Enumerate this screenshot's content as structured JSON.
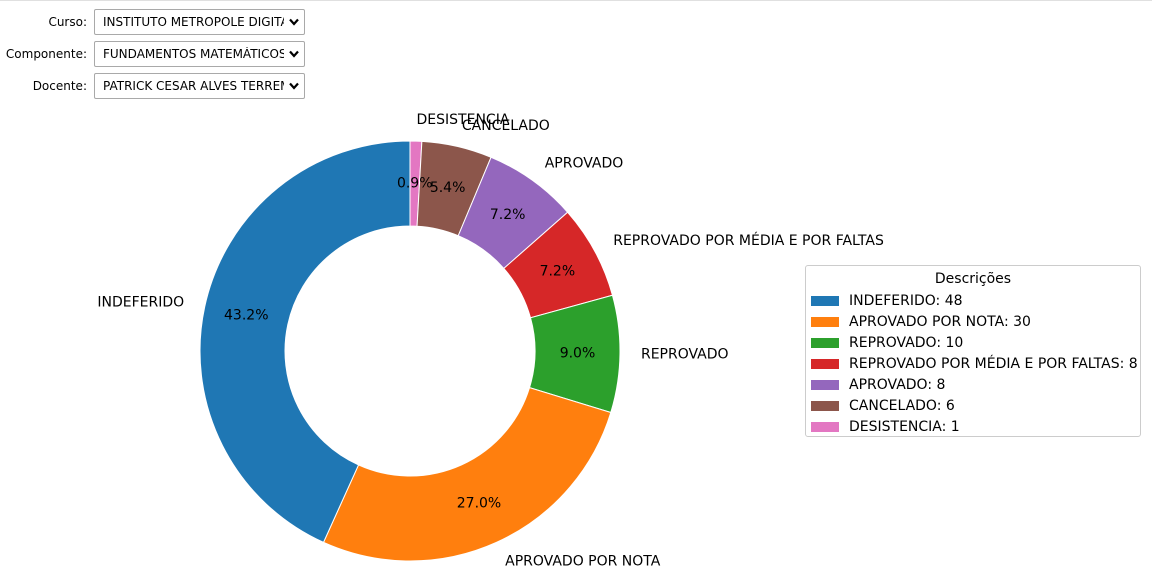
{
  "filters": [
    {
      "label": "Curso:",
      "value": "INSTITUTO METROPOLE DIGITAL"
    },
    {
      "label": "Componente:",
      "value": "FUNDAMENTOS MATEMÁTICOS DA COMPUTAÇÃO"
    },
    {
      "label": "Docente:",
      "value": "PATRICK CESAR ALVES TERREMATTE"
    }
  ],
  "icons": {
    "dropdown": "chevron-down-icon"
  },
  "chart_data": {
    "type": "pie",
    "donut": true,
    "start_angle_deg": 90,
    "direction": "clockwise-from-top",
    "categories": [
      "DESISTENCIA",
      "CANCELADO",
      "APROVADO",
      "REPROVADO POR MÉDIA E POR FALTAS",
      "REPROVADO",
      "APROVADO POR NOTA",
      "INDEFERIDO"
    ],
    "values": [
      1,
      6,
      8,
      8,
      10,
      30,
      48
    ],
    "percent_labels": [
      "0.9%",
      "5.4%",
      "7.2%",
      "7.2%",
      "9.0%",
      "27.0%",
      "43.2%"
    ],
    "colors": [
      "#e377c2",
      "#8c564b",
      "#9467bd",
      "#d62728",
      "#2ca02c",
      "#ff7f0e",
      "#1f77b4"
    ],
    "legend": {
      "title": "Descrições",
      "placement": "right",
      "entries": [
        {
          "label": "INDEFERIDO: 48",
          "color": "#1f77b4"
        },
        {
          "label": "APROVADO POR NOTA: 30",
          "color": "#ff7f0e"
        },
        {
          "label": "REPROVADO: 10",
          "color": "#2ca02c"
        },
        {
          "label": "REPROVADO POR MÉDIA E POR FALTAS: 8",
          "color": "#d62728"
        },
        {
          "label": "APROVADO: 8",
          "color": "#9467bd"
        },
        {
          "label": "CANCELADO: 6",
          "color": "#8c564b"
        },
        {
          "label": "DESISTENCIA: 1",
          "color": "#e377c2"
        }
      ]
    }
  }
}
